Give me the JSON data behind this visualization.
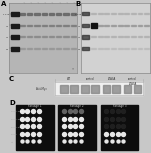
{
  "fig_bg": "#c8c8c8",
  "gel_A_bg": "#b8b8b8",
  "gel_B_bg": "#d0d0d0",
  "panel_C_bg": "#e8e8e8",
  "panel_D_bg": "#000000",
  "white_bg": "#c8c8c8",
  "marker_color": "#111111",
  "band_dark": "#222222",
  "band_mid": "#666666",
  "band_light": "#999999",
  "label_A": "A",
  "label_B": "B",
  "label_C": "C",
  "label_D": "D"
}
